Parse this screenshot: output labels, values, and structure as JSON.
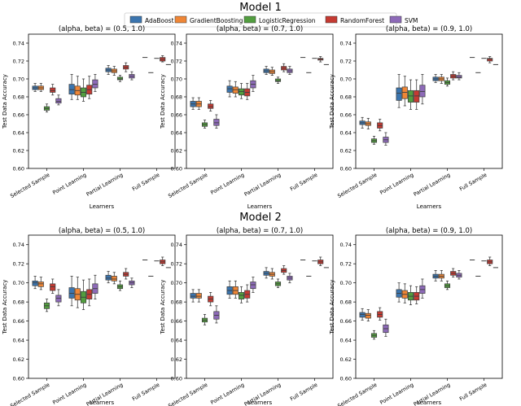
{
  "legend": {
    "entries": [
      {
        "name": "AdaBoost",
        "color": "#3b75af"
      },
      {
        "name": "GradientBoosting",
        "color": "#ef8636"
      },
      {
        "name": "LogisticRegression",
        "color": "#529e3f"
      },
      {
        "name": "RandomForest",
        "color": "#c53a32"
      },
      {
        "name": "SVM",
        "color": "#8d6ab8"
      }
    ]
  },
  "chart_data": [
    {
      "type": "box",
      "model": "Model 1",
      "title": "(alpha, beta) = (0.5, 1.0)",
      "xlabel": "Learners",
      "ylabel": "Test Data Accuracy",
      "categories": [
        "Selected Sample",
        "Point Learning",
        "Partial Learning",
        "Full Sample"
      ],
      "ylim": [
        0.6,
        0.75
      ],
      "yticks": [
        "0.60",
        "0.62",
        "0.64",
        "0.66",
        "0.68",
        "0.70",
        "0.72",
        "0.74"
      ],
      "boxes": [
        [
          [
            0.686,
            0.688,
            0.69,
            0.692,
            0.695
          ],
          [
            0.686,
            0.688,
            0.69,
            0.692,
            0.695
          ],
          [
            0.663,
            0.665,
            0.667,
            0.669,
            0.672
          ],
          [
            0.682,
            0.685,
            0.687,
            0.69,
            0.694
          ],
          [
            0.671,
            0.673,
            0.675,
            0.678,
            0.682
          ]
        ],
        [
          [
            0.677,
            0.683,
            0.688,
            0.694,
            0.705
          ],
          [
            0.677,
            0.682,
            0.687,
            0.692,
            0.703
          ],
          [
            0.675,
            0.68,
            0.685,
            0.69,
            0.7
          ],
          [
            0.678,
            0.683,
            0.688,
            0.693,
            0.703
          ],
          [
            0.686,
            0.69,
            0.694,
            0.699,
            0.705
          ]
        ],
        [
          [
            0.705,
            0.708,
            0.71,
            0.712,
            0.715
          ],
          [
            0.704,
            0.707,
            0.709,
            0.711,
            0.714
          ],
          [
            0.697,
            0.699,
            0.7,
            0.702,
            0.704
          ],
          [
            0.708,
            0.711,
            0.713,
            0.715,
            0.718
          ],
          [
            0.699,
            0.701,
            0.703,
            0.705,
            0.708
          ]
        ],
        [
          [
            0.724,
            0.724,
            0.724,
            0.724,
            0.724
          ],
          [
            0.707,
            0.707,
            0.707,
            0.707,
            0.707
          ],
          [
            0.723,
            0.723,
            0.723,
            0.723,
            0.723
          ],
          [
            0.719,
            0.72,
            0.722,
            0.724,
            0.726
          ],
          [
            0.716,
            0.716,
            0.716,
            0.716,
            0.716
          ]
        ]
      ]
    },
    {
      "type": "box",
      "model": "Model 1",
      "title": "(alpha, beta) = (0.7, 1.0)",
      "xlabel": "Learners",
      "ylabel": "Test Data Accuracy",
      "categories": [
        "Selected Sample",
        "Point Learning",
        "Partial Learning",
        "Full Sample"
      ],
      "ylim": [
        0.6,
        0.75
      ],
      "yticks": [
        "0.60",
        "0.62",
        "0.64",
        "0.66",
        "0.68",
        "0.70",
        "0.72",
        "0.74"
      ],
      "boxes": [
        [
          [
            0.666,
            0.669,
            0.672,
            0.675,
            0.679
          ],
          [
            0.666,
            0.669,
            0.672,
            0.675,
            0.679
          ],
          [
            0.645,
            0.647,
            0.649,
            0.651,
            0.654
          ],
          [
            0.664,
            0.667,
            0.669,
            0.672,
            0.676
          ],
          [
            0.645,
            0.648,
            0.651,
            0.655,
            0.66
          ]
        ],
        [
          [
            0.68,
            0.685,
            0.689,
            0.692,
            0.698
          ],
          [
            0.68,
            0.684,
            0.688,
            0.691,
            0.697
          ],
          [
            0.678,
            0.682,
            0.686,
            0.689,
            0.695
          ],
          [
            0.677,
            0.681,
            0.685,
            0.689,
            0.695
          ],
          [
            0.686,
            0.69,
            0.694,
            0.698,
            0.704
          ]
        ],
        [
          [
            0.705,
            0.707,
            0.709,
            0.711,
            0.714
          ],
          [
            0.704,
            0.706,
            0.708,
            0.71,
            0.713
          ],
          [
            0.695,
            0.697,
            0.698,
            0.7,
            0.702
          ],
          [
            0.708,
            0.71,
            0.712,
            0.714,
            0.717
          ],
          [
            0.705,
            0.707,
            0.709,
            0.711,
            0.714
          ]
        ],
        [
          [
            0.724,
            0.724,
            0.724,
            0.724,
            0.724
          ],
          [
            0.707,
            0.707,
            0.707,
            0.707,
            0.707
          ],
          [
            0.723,
            0.723,
            0.723,
            0.723,
            0.723
          ],
          [
            0.719,
            0.721,
            0.722,
            0.723,
            0.725
          ],
          [
            0.716,
            0.716,
            0.716,
            0.716,
            0.716
          ]
        ]
      ]
    },
    {
      "type": "box",
      "model": "Model 1",
      "title": "(alpha, beta) = (0.9, 1.0)",
      "xlabel": "Learners",
      "ylabel": "Test Data Accuracy",
      "categories": [
        "Selected Sample",
        "Point Learning",
        "Partial Learning",
        "Full Sample"
      ],
      "ylim": [
        0.6,
        0.75
      ],
      "yticks": [
        "0.60",
        "0.62",
        "0.64",
        "0.66",
        "0.68",
        "0.70",
        "0.72",
        "0.74"
      ],
      "boxes": [
        [
          [
            0.645,
            0.649,
            0.651,
            0.653,
            0.657
          ],
          [
            0.644,
            0.648,
            0.65,
            0.652,
            0.656
          ],
          [
            0.627,
            0.629,
            0.631,
            0.633,
            0.636
          ],
          [
            0.642,
            0.645,
            0.648,
            0.651,
            0.655
          ],
          [
            0.626,
            0.629,
            0.632,
            0.635,
            0.64
          ]
        ],
        [
          [
            0.668,
            0.676,
            0.684,
            0.69,
            0.705
          ],
          [
            0.67,
            0.678,
            0.685,
            0.691,
            0.703
          ],
          [
            0.666,
            0.674,
            0.681,
            0.687,
            0.699
          ],
          [
            0.666,
            0.674,
            0.681,
            0.687,
            0.699
          ],
          [
            0.672,
            0.68,
            0.686,
            0.693,
            0.705
          ]
        ],
        [
          [
            0.696,
            0.698,
            0.7,
            0.702,
            0.705
          ],
          [
            0.695,
            0.698,
            0.7,
            0.702,
            0.705
          ],
          [
            0.692,
            0.694,
            0.696,
            0.698,
            0.701
          ],
          [
            0.699,
            0.701,
            0.703,
            0.705,
            0.708
          ],
          [
            0.699,
            0.701,
            0.702,
            0.704,
            0.707
          ]
        ],
        [
          [
            0.724,
            0.724,
            0.724,
            0.724,
            0.724
          ],
          [
            0.707,
            0.707,
            0.707,
            0.707,
            0.707
          ],
          [
            0.723,
            0.723,
            0.723,
            0.723,
            0.723
          ],
          [
            0.718,
            0.72,
            0.722,
            0.723,
            0.725
          ],
          [
            0.716,
            0.716,
            0.716,
            0.716,
            0.716
          ]
        ]
      ]
    },
    {
      "type": "box",
      "model": "Model 2",
      "title": "(alpha, beta) = (0.5, 1.0)",
      "xlabel": "Learners",
      "ylabel": "Test Data Accuracy",
      "categories": [
        "Selected Sample",
        "Point Learning",
        "Partial Learning",
        "Full Sample"
      ],
      "ylim": [
        0.6,
        0.75
      ],
      "yticks": [
        "0.60",
        "0.62",
        "0.64",
        "0.66",
        "0.68",
        "0.70",
        "0.72",
        "0.74"
      ],
      "boxes": [
        [
          [
            0.694,
            0.697,
            0.7,
            0.702,
            0.707
          ],
          [
            0.693,
            0.696,
            0.699,
            0.701,
            0.706
          ],
          [
            0.67,
            0.673,
            0.676,
            0.679,
            0.683
          ],
          [
            0.689,
            0.692,
            0.696,
            0.699,
            0.704
          ],
          [
            0.676,
            0.68,
            0.684,
            0.687,
            0.693
          ]
        ],
        [
          [
            0.676,
            0.684,
            0.689,
            0.695,
            0.707
          ],
          [
            0.674,
            0.682,
            0.688,
            0.694,
            0.706
          ],
          [
            0.672,
            0.679,
            0.685,
            0.691,
            0.703
          ],
          [
            0.676,
            0.683,
            0.688,
            0.693,
            0.704
          ],
          [
            0.683,
            0.689,
            0.694,
            0.699,
            0.708
          ]
        ],
        [
          [
            0.7,
            0.703,
            0.705,
            0.708,
            0.712
          ],
          [
            0.699,
            0.702,
            0.704,
            0.707,
            0.711
          ],
          [
            0.692,
            0.694,
            0.696,
            0.698,
            0.702
          ],
          [
            0.704,
            0.707,
            0.709,
            0.711,
            0.715
          ],
          [
            0.695,
            0.698,
            0.7,
            0.702,
            0.705
          ]
        ],
        [
          [
            0.724,
            0.724,
            0.724,
            0.724,
            0.724
          ],
          [
            0.707,
            0.707,
            0.707,
            0.707,
            0.707
          ],
          [
            0.723,
            0.723,
            0.723,
            0.723,
            0.723
          ],
          [
            0.718,
            0.72,
            0.722,
            0.724,
            0.727
          ],
          [
            0.716,
            0.716,
            0.716,
            0.716,
            0.716
          ]
        ]
      ]
    },
    {
      "type": "box",
      "model": "Model 2",
      "title": "(alpha, beta) = (0.7, 1.0)",
      "xlabel": "Learners",
      "ylabel": "Test Data Accuracy",
      "categories": [
        "Selected Sample",
        "Point Learning",
        "Partial Learning",
        "Full Sample"
      ],
      "ylim": [
        0.6,
        0.75
      ],
      "yticks": [
        "0.60",
        "0.62",
        "0.64",
        "0.66",
        "0.68",
        "0.70",
        "0.72",
        "0.74"
      ],
      "boxes": [
        [
          [
            0.68,
            0.684,
            0.686,
            0.689,
            0.693
          ],
          [
            0.68,
            0.684,
            0.686,
            0.689,
            0.693
          ],
          [
            0.656,
            0.659,
            0.661,
            0.663,
            0.667
          ],
          [
            0.676,
            0.68,
            0.683,
            0.686,
            0.69
          ],
          [
            0.658,
            0.662,
            0.666,
            0.67,
            0.676
          ]
        ],
        [
          [
            0.684,
            0.688,
            0.692,
            0.696,
            0.702
          ],
          [
            0.684,
            0.688,
            0.692,
            0.696,
            0.702
          ],
          [
            0.679,
            0.683,
            0.687,
            0.69,
            0.696
          ],
          [
            0.68,
            0.684,
            0.688,
            0.692,
            0.698
          ],
          [
            0.69,
            0.694,
            0.698,
            0.701,
            0.706
          ]
        ],
        [
          [
            0.705,
            0.708,
            0.71,
            0.712,
            0.716
          ],
          [
            0.704,
            0.707,
            0.709,
            0.711,
            0.715
          ],
          [
            0.695,
            0.697,
            0.699,
            0.701,
            0.704
          ],
          [
            0.709,
            0.711,
            0.713,
            0.715,
            0.718
          ],
          [
            0.7,
            0.703,
            0.705,
            0.707,
            0.71
          ]
        ],
        [
          [
            0.724,
            0.724,
            0.724,
            0.724,
            0.724
          ],
          [
            0.707,
            0.707,
            0.707,
            0.707,
            0.707
          ],
          [
            0.723,
            0.723,
            0.723,
            0.723,
            0.723
          ],
          [
            0.718,
            0.72,
            0.722,
            0.724,
            0.727
          ],
          [
            0.716,
            0.716,
            0.716,
            0.716,
            0.716
          ]
        ]
      ]
    },
    {
      "type": "box",
      "model": "Model 2",
      "title": "(alpha, beta) = (0.9, 1.0)",
      "xlabel": "Learners",
      "ylabel": "Test Data Accuracy",
      "categories": [
        "Selected Sample",
        "Point Learning",
        "Partial Learning",
        "Full Sample"
      ],
      "ylim": [
        0.6,
        0.75
      ],
      "yticks": [
        "0.60",
        "0.62",
        "0.64",
        "0.66",
        "0.68",
        "0.70",
        "0.72",
        "0.74"
      ],
      "boxes": [
        [
          [
            0.661,
            0.664,
            0.667,
            0.669,
            0.673
          ],
          [
            0.66,
            0.663,
            0.666,
            0.668,
            0.672
          ],
          [
            0.641,
            0.643,
            0.645,
            0.647,
            0.65
          ],
          [
            0.661,
            0.664,
            0.667,
            0.67,
            0.674
          ],
          [
            0.644,
            0.648,
            0.652,
            0.656,
            0.662
          ]
        ],
        [
          [
            0.68,
            0.685,
            0.689,
            0.693,
            0.7
          ],
          [
            0.679,
            0.684,
            0.688,
            0.692,
            0.699
          ],
          [
            0.677,
            0.682,
            0.686,
            0.69,
            0.697
          ],
          [
            0.678,
            0.682,
            0.686,
            0.69,
            0.696
          ],
          [
            0.684,
            0.689,
            0.693,
            0.697,
            0.704
          ]
        ],
        [
          [
            0.702,
            0.705,
            0.707,
            0.709,
            0.713
          ],
          [
            0.702,
            0.705,
            0.707,
            0.709,
            0.713
          ],
          [
            0.693,
            0.695,
            0.697,
            0.699,
            0.702
          ],
          [
            0.706,
            0.708,
            0.71,
            0.712,
            0.715
          ],
          [
            0.704,
            0.706,
            0.708,
            0.71,
            0.713
          ]
        ],
        [
          [
            0.724,
            0.724,
            0.724,
            0.724,
            0.724
          ],
          [
            0.707,
            0.707,
            0.707,
            0.707,
            0.707
          ],
          [
            0.723,
            0.723,
            0.723,
            0.723,
            0.723
          ],
          [
            0.718,
            0.72,
            0.722,
            0.724,
            0.727
          ],
          [
            0.716,
            0.716,
            0.716,
            0.716,
            0.716
          ]
        ]
      ]
    }
  ],
  "section_titles": [
    "Model 1",
    "Model 2"
  ]
}
